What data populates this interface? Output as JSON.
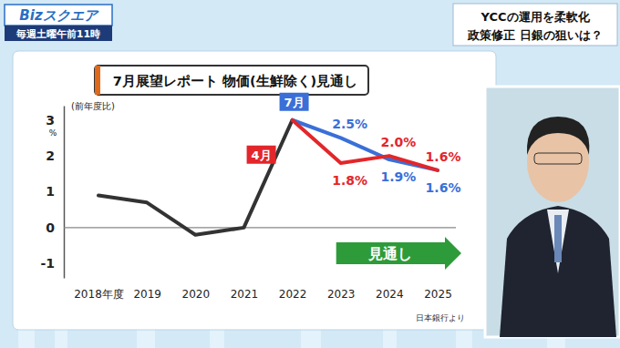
{
  "program": {
    "name": "Bizスクエア",
    "schedule": "毎週土曜午前11時"
  },
  "headline": [
    "YCCの運用を柔軟化",
    "政策修正 日銀の狙いは？"
  ],
  "chart_data": {
    "type": "line",
    "title": "7月展望レポート 物価(生鮮除く)見通し",
    "ylabel": "(前年度比)",
    "yunit": "%",
    "categories": [
      "2018年度",
      "2019",
      "2020",
      "2021",
      "2022",
      "2023",
      "2024",
      "2025"
    ],
    "series": [
      {
        "color": "#333333",
        "values": [
          0.9,
          0.7,
          -0.2,
          0.0,
          3.0,
          null,
          null,
          null
        ]
      },
      {
        "name": "7月",
        "color": "#3a6fd8",
        "values": [
          null,
          null,
          null,
          null,
          3.0,
          2.5,
          1.9,
          1.6
        ],
        "data_labels": true,
        "value_labels": [
          null,
          null,
          null,
          null,
          null,
          "2.5%",
          "1.9%",
          "1.6%"
        ]
      },
      {
        "name": "4月",
        "color": "#e3262a",
        "values": [
          null,
          null,
          null,
          null,
          3.0,
          1.8,
          2.0,
          1.6
        ],
        "data_labels": true,
        "value_labels": [
          null,
          null,
          null,
          null,
          null,
          "1.8%",
          "2.0%",
          "1.6%"
        ]
      }
    ],
    "ylim": [
      -1.4,
      3.4
    ],
    "yticks": [
      -1,
      0,
      1,
      2,
      3
    ],
    "grid": false,
    "annotations": [
      "見通し"
    ],
    "source": "日本銀行より"
  }
}
